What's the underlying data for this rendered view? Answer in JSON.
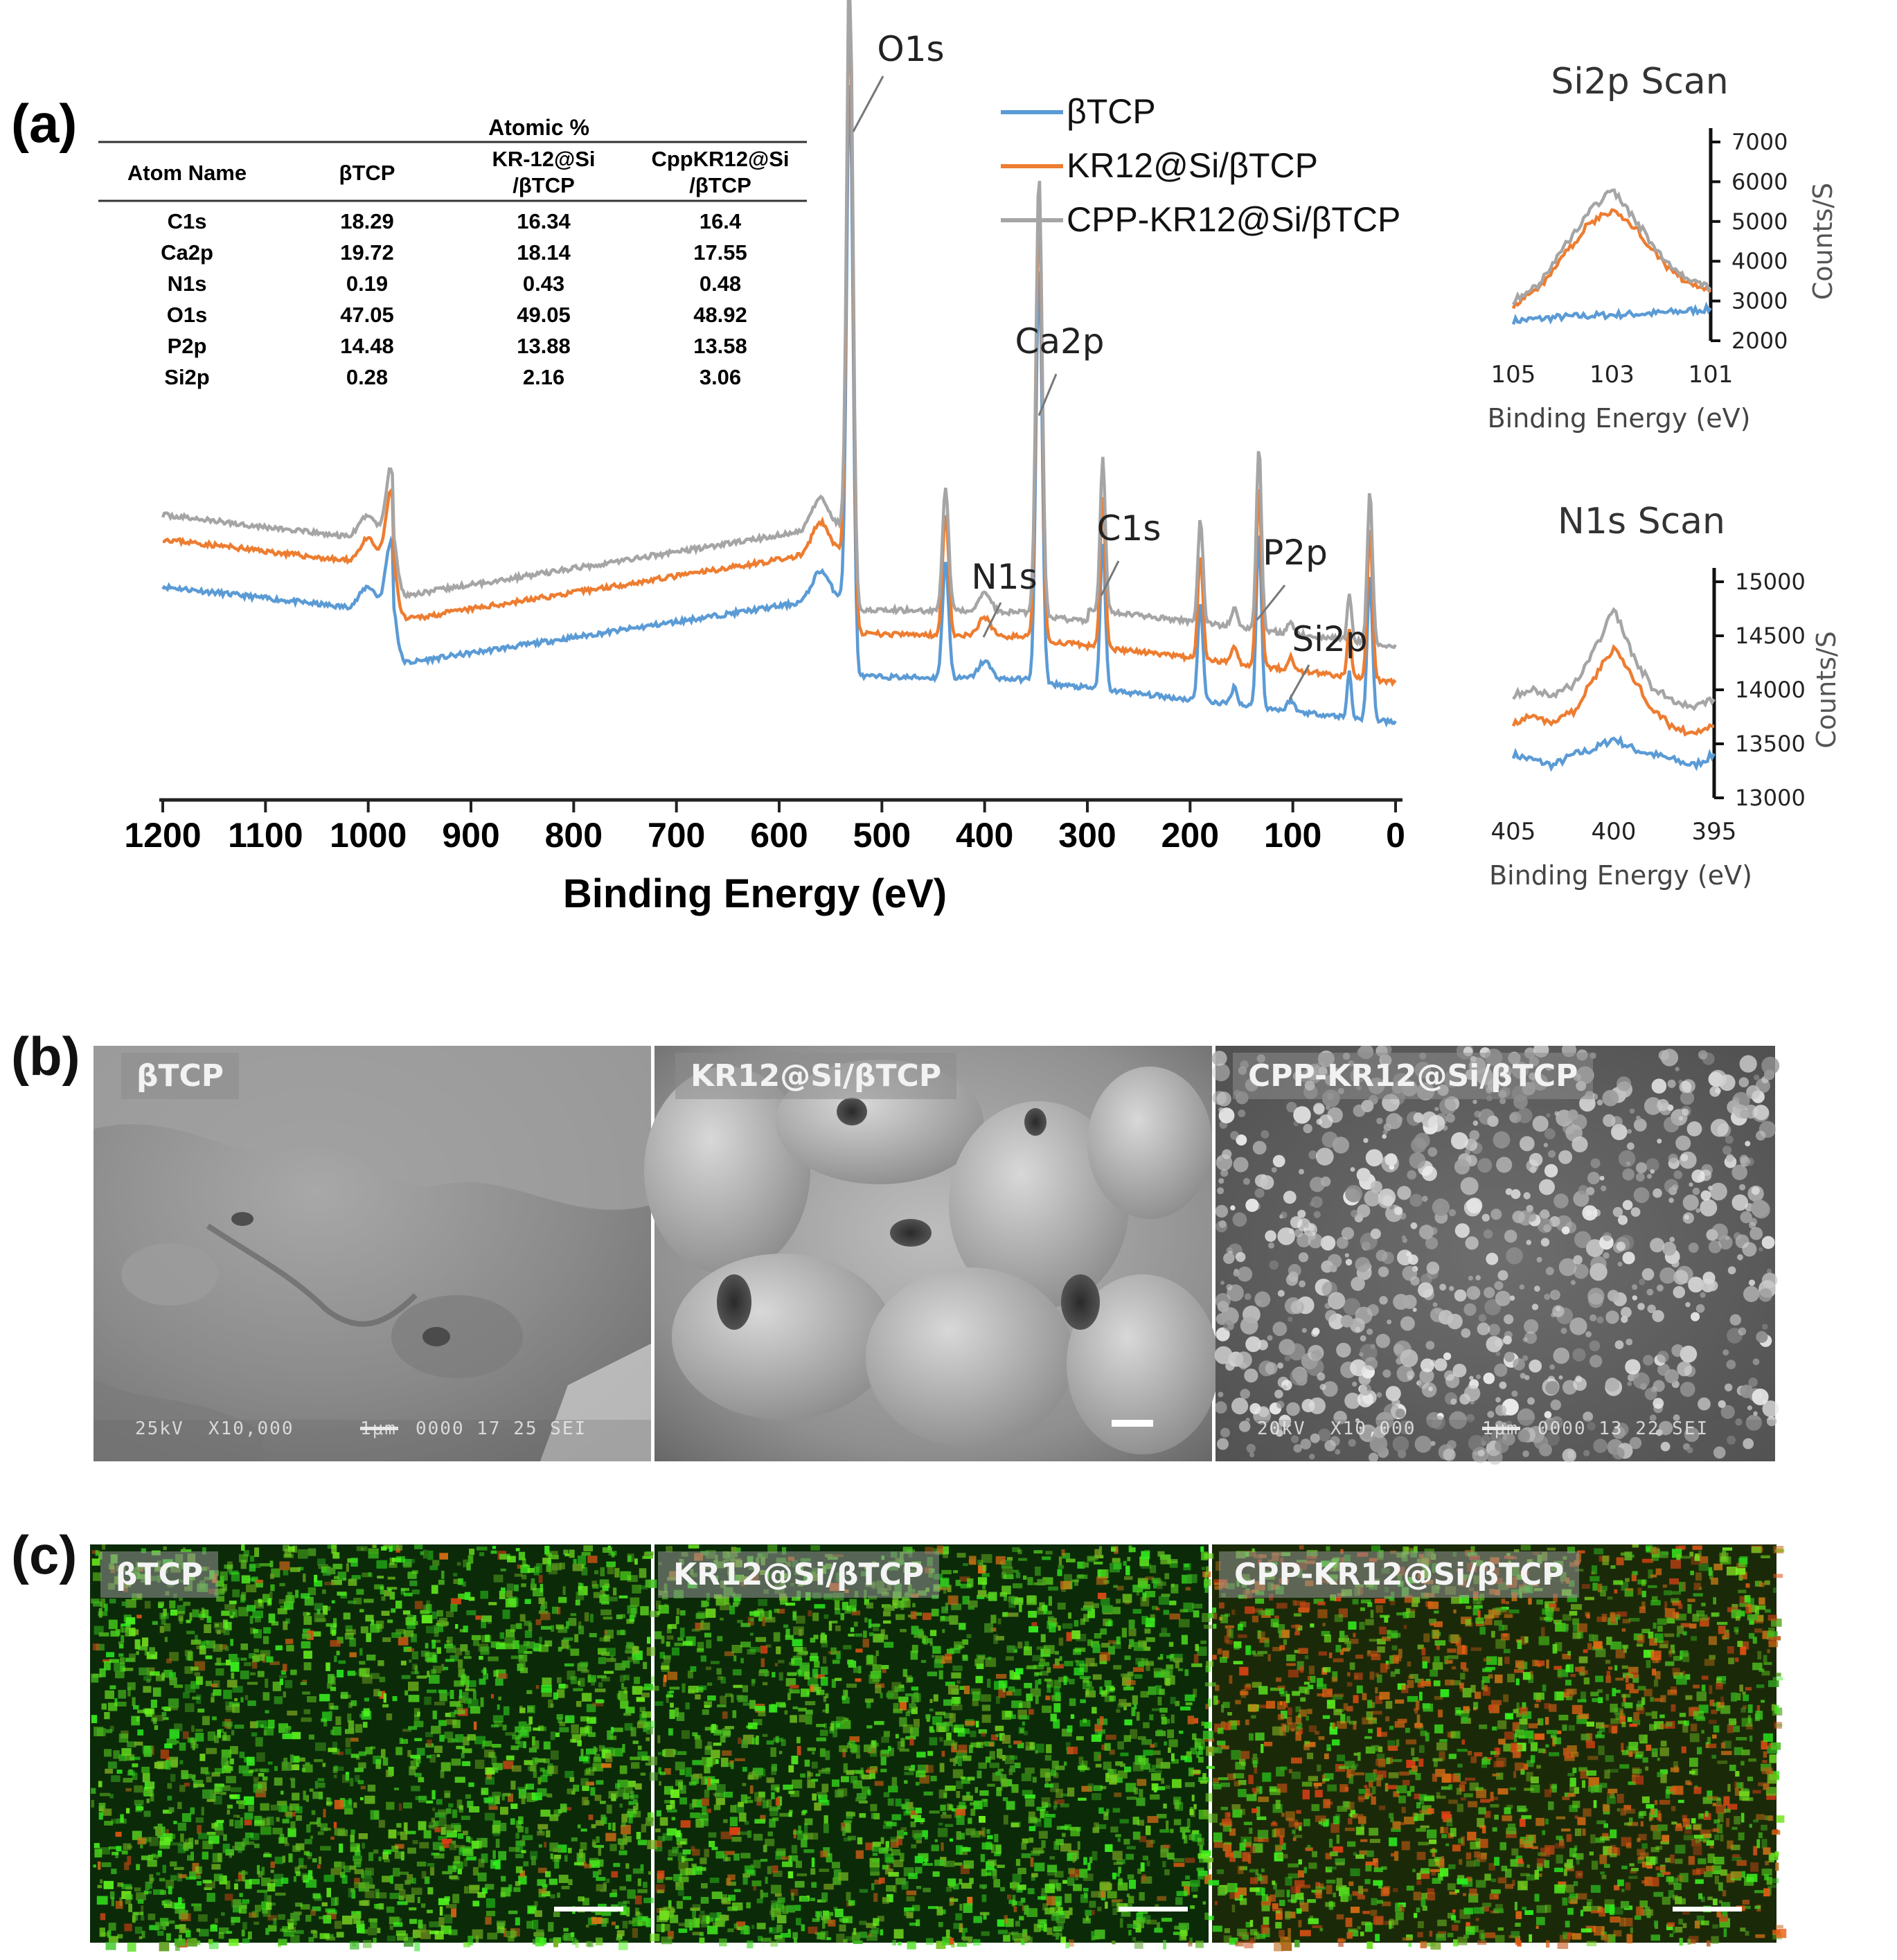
{
  "panels": {
    "a": "(a)",
    "b": "(b)",
    "c": "(c)"
  },
  "colors": {
    "btcp": "#5b9bd5",
    "kr12": "#ed7d31",
    "cpp": "#a5a5a5"
  },
  "legend": [
    "βTCP",
    "KR12@Si/βTCP",
    "CPP-KR12@Si/βTCP"
  ],
  "table": {
    "group_header": "Atomic %",
    "headers": [
      "Atom Name",
      "βTCP",
      "KR-12@Si\n/βTCP",
      "CppKR12@Si\n/βTCP"
    ],
    "rows": [
      [
        "C1s",
        "18.29",
        "16.34",
        "16.4"
      ],
      [
        "Ca2p",
        "19.72",
        "18.14",
        "17.55"
      ],
      [
        "N1s",
        "0.19",
        "0.43",
        "0.48"
      ],
      [
        "O1s",
        "47.05",
        "49.05",
        "48.92"
      ],
      [
        "P2p",
        "14.48",
        "13.88",
        "13.58"
      ],
      [
        "Si2p",
        "0.28",
        "2.16",
        "3.06"
      ]
    ]
  },
  "chart_data": [
    {
      "type": "line",
      "xlabel": "Binding Energy (eV)",
      "x_ticks": [
        "1200",
        "1100",
        "1000",
        "900",
        "800",
        "700",
        "600",
        "500",
        "400",
        "300",
        "200",
        "100",
        "0"
      ],
      "xlim": [
        1200,
        0
      ],
      "x_reversed": true,
      "peak_annotations": [
        {
          "label": "O1s",
          "x": 531
        },
        {
          "label": "Ca2p",
          "x": 347
        },
        {
          "label": "N1s",
          "x": 400
        },
        {
          "label": "C1s",
          "x": 285
        },
        {
          "label": "P2p",
          "x": 133
        },
        {
          "label": "Si2p",
          "x": 102
        }
      ],
      "series": [
        {
          "name": "βTCP"
        },
        {
          "name": "KR12@Si/βTCP"
        },
        {
          "name": "CPP-KR12@Si/βTCP"
        }
      ]
    },
    {
      "type": "line",
      "title": "Si2p Scan",
      "xlabel": "Binding Energy (eV)",
      "ylabel": "Counts/S",
      "x_ticks": [
        "105",
        "103",
        "101"
      ],
      "xlim": [
        105,
        101
      ],
      "y_ticks": [
        "7000",
        "6000",
        "5000",
        "4000",
        "3000",
        "2000"
      ],
      "ylim": [
        2000,
        7000
      ],
      "series": [
        {
          "name": "βTCP",
          "x": [
            105,
            104,
            103,
            102,
            101
          ],
          "y": [
            2500,
            2600,
            2650,
            2700,
            2800
          ]
        },
        {
          "name": "KR12@Si/βTCP",
          "x": [
            105,
            104.5,
            104,
            103.5,
            103,
            102.5,
            102,
            101.5,
            101
          ],
          "y": [
            2900,
            3300,
            4100,
            4900,
            5300,
            4800,
            4000,
            3500,
            3200
          ]
        },
        {
          "name": "CPP-KR12@Si/βTCP",
          "x": [
            105,
            104.5,
            104,
            103.5,
            103,
            102.5,
            102,
            101.5,
            101
          ],
          "y": [
            3000,
            3400,
            4300,
            5200,
            5800,
            5000,
            4100,
            3600,
            3300
          ]
        }
      ]
    },
    {
      "type": "line",
      "title": "N1s Scan",
      "xlabel": "Binding Energy (eV)",
      "ylabel": "Counts/S",
      "x_ticks": [
        "405",
        "400",
        "395"
      ],
      "xlim": [
        405,
        395
      ],
      "y_ticks": [
        "15000",
        "14500",
        "14000",
        "13500",
        "13000"
      ],
      "ylim": [
        13000,
        15000
      ],
      "series": [
        {
          "name": "βTCP",
          "x": [
            405,
            404,
            403,
            402,
            401,
            400,
            399,
            398,
            397,
            396,
            395
          ],
          "y": [
            13400,
            13350,
            13300,
            13400,
            13450,
            13550,
            13450,
            13400,
            13350,
            13300,
            13400
          ]
        },
        {
          "name": "KR12@Si/βTCP",
          "x": [
            405,
            404,
            403,
            402,
            401,
            400,
            399,
            398,
            397,
            396,
            395
          ],
          "y": [
            13700,
            13750,
            13700,
            13800,
            14100,
            14400,
            14100,
            13800,
            13650,
            13600,
            13650
          ]
        },
        {
          "name": "CPP-KR12@Si/βTCP",
          "x": [
            405,
            404,
            403,
            402,
            401,
            400,
            399,
            398,
            397,
            396,
            395
          ],
          "y": [
            13950,
            14000,
            13950,
            14050,
            14350,
            14750,
            14300,
            14000,
            13900,
            13850,
            13900
          ]
        }
      ]
    }
  ],
  "sem": [
    {
      "label": "βTCP",
      "info": "25kV  X10,000",
      "scale": "1μm",
      "code": "0000 17 25 SEI"
    },
    {
      "label": "KR12@Si/βTCP"
    },
    {
      "label": "CPP-KR12@Si/βTCP",
      "info": "20kV  X10,000",
      "scale": "1μm",
      "code": "0000 13 22 SEI"
    }
  ],
  "fluorescence": [
    {
      "label": "βTCP"
    },
    {
      "label": "KR12@Si/βTCP"
    },
    {
      "label": "CPP-KR12@Si/βTCP"
    }
  ]
}
